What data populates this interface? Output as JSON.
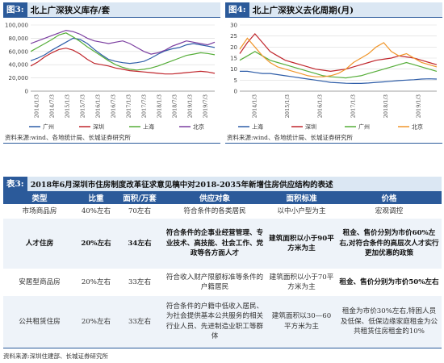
{
  "figure3": {
    "tag": "图3:",
    "title": "北上广深狭义库存/套",
    "source": "资料来源:wind、各地统计局、长城证券研究所",
    "chart_data": {
      "type": "line",
      "y_ticks": [
        "100,000",
        "80,000",
        "60,000",
        "40,000",
        "20,000",
        "0"
      ],
      "ylim": [
        0,
        100000
      ],
      "x_ticks": [
        "2014/1/3",
        "2014/7/3",
        "2015/1/3",
        "2015/7/3",
        "2016/1/3",
        "2016/7/3",
        "2017/1/3",
        "2017/7/3",
        "2018/1/3",
        "2018/7/3",
        "2019/1/3",
        "2019/7/3"
      ],
      "series": [
        {
          "name": "广州",
          "color": "#2e5da8",
          "values": [
            46000,
            50000,
            55000,
            62000,
            68000,
            74000,
            80000,
            78000,
            72000,
            63000,
            55000,
            48000,
            45000,
            43000,
            42000,
            43000,
            45000,
            50000,
            56000,
            61000,
            64000,
            66000,
            70000,
            72000,
            70000,
            68000,
            66000
          ]
        },
        {
          "name": "深圳",
          "color": "#c0262c",
          "values": [
            38000,
            44000,
            52000,
            58000,
            63000,
            65000,
            62000,
            56000,
            48000,
            42000,
            40000,
            38000,
            35000,
            33000,
            31000,
            30000,
            29000,
            28000,
            27000,
            26000,
            26000,
            27000,
            28000,
            29000,
            30000,
            29000,
            27000
          ]
        },
        {
          "name": "上海",
          "color": "#55ad38",
          "values": [
            60000,
            66000,
            72000,
            78000,
            85000,
            88000,
            82000,
            75000,
            67000,
            60000,
            53000,
            46000,
            40000,
            36000,
            33000,
            32000,
            33000,
            35000,
            38000,
            42000,
            46000,
            50000,
            54000,
            56000,
            58000,
            57000,
            55000
          ]
        },
        {
          "name": "北京",
          "color": "#7b3ea0",
          "values": [
            72000,
            76000,
            80000,
            84000,
            88000,
            92000,
            90000,
            86000,
            80000,
            76000,
            74000,
            72000,
            74000,
            76000,
            72000,
            66000,
            60000,
            56000,
            58000,
            62000,
            68000,
            72000,
            76000,
            74000,
            72000,
            70000,
            74000
          ]
        }
      ]
    }
  },
  "figure4": {
    "tag": "图4:",
    "title": "北上广深狭义去化周期(月)",
    "source": "资料来源:wind、各地统计局、长城证券研究所",
    "chart_data": {
      "type": "line",
      "y_ticks": [
        "30",
        "25",
        "20",
        "15",
        "10",
        "5",
        "0"
      ],
      "ylim": [
        0,
        30
      ],
      "x_ticks": [
        "2014/1/3",
        "2015/1/3",
        "2016/1/3",
        "2017/1/3",
        "2018/1/3",
        "2019/1/3"
      ],
      "series": [
        {
          "name": "上海",
          "color": "#2e5da8",
          "values": [
            9,
            9,
            8.5,
            8,
            8,
            7.5,
            7,
            6.5,
            6,
            5.5,
            5,
            4.5,
            4,
            3.8,
            3.6,
            3.5,
            3.5,
            3.7,
            4,
            4.2,
            4.5,
            4.8,
            5,
            5.2,
            5.5,
            5.6,
            5.5
          ]
        },
        {
          "name": "深圳",
          "color": "#c0262c",
          "values": [
            17,
            22,
            26,
            22,
            18,
            16,
            14,
            13,
            12,
            11,
            10,
            9.5,
            9,
            9.5,
            10,
            11,
            12,
            13,
            14,
            14.5,
            15,
            16,
            15.5,
            15,
            14,
            13,
            12
          ]
        },
        {
          "name": "广州",
          "color": "#55ad38",
          "values": [
            14,
            16,
            18,
            16,
            14,
            13,
            12,
            11,
            10,
            9,
            8,
            7,
            6.5,
            6.3,
            6,
            6.5,
            7,
            8,
            9,
            10,
            11,
            12,
            13,
            12,
            11,
            10,
            9
          ]
        },
        {
          "name": "北京",
          "color": "#f0962b",
          "values": [
            19,
            24,
            20,
            16,
            13,
            11,
            10,
            9,
            8,
            7,
            6.5,
            6.5,
            7,
            8,
            10,
            13,
            15,
            17,
            20,
            22,
            18,
            16,
            17,
            15,
            13,
            12,
            11
          ]
        }
      ]
    }
  },
  "table5": {
    "tag": "表3:",
    "title": "2018年6月深圳市住房制度改革征求意见稿中对2018-2035年新增住房供应结构的表述",
    "headers": [
      "类型",
      "比重",
      "面积/万套",
      "供应对象",
      "面积标准",
      "价格"
    ],
    "rows": [
      {
        "type": "市场商品房",
        "ratio": "40%左右",
        "units": "70左右",
        "target": "符合条件的各类居民",
        "area": "以中小户型为主",
        "price": "宏观调控"
      },
      {
        "type": "人才住房",
        "ratio": "20%左右",
        "units": "34左右",
        "target": "符合条件的企事业经营管理、专业技术、高技能、社会工作、党政等各方面人才",
        "area": "建筑面积以小于90平方米为主",
        "price": "租金、售价分别为市价60%左右,对符合条件的高层次人才实行更加优惠的政策"
      },
      {
        "type": "安居型商品房",
        "ratio": "20%左右",
        "units": "33左右",
        "target": "符合收入财产限额标准等条件的户籍居民",
        "area": "建筑面积以小于70平方米为主",
        "price": "租金、售价分别为市价50%左右"
      },
      {
        "type": "公共租赁住房",
        "ratio": "20%左右",
        "units": "33左右",
        "target": "符合条件的户籍中低收入居民、为社会提供基本公共服务的相关行业人员、先进制造业职工等群体",
        "area": "建筑面积以30—60平方米为主",
        "price": "租金为市价30%左右,特困人员及低保、低保边缘家庭租金为公共租赁住房租金的10%"
      }
    ],
    "source": "资料来源:深圳住建部、长城证券研究所"
  }
}
